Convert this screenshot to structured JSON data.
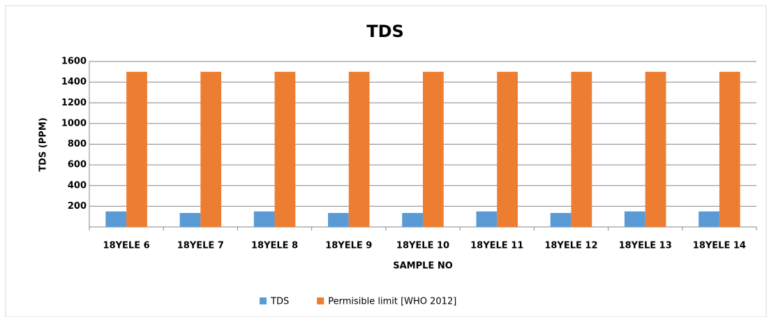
{
  "chart_data": {
    "type": "bar",
    "title": "TDS",
    "x_label": "SAMPLE NO",
    "y_label": "TDS (PPM)",
    "categories": [
      "18YELE 6",
      "18YELE 7",
      "18YELE 8",
      "18YELE 9",
      "18YELE 10",
      "18YELE 11",
      "18YELE 12",
      "18YELE 13",
      "18YELE 14"
    ],
    "series": [
      {
        "name": "TDS",
        "color": "#5b9bd5",
        "values": [
          150,
          135,
          150,
          135,
          135,
          150,
          135,
          150,
          150
        ]
      },
      {
        "name": "Permisible limit [WHO 2012]",
        "color": "#ed7d31",
        "values": [
          1500,
          1500,
          1500,
          1500,
          1500,
          1500,
          1500,
          1500,
          1500
        ]
      }
    ],
    "ylim": [
      0,
      1600
    ],
    "yticks": [
      200,
      400,
      600,
      800,
      1000,
      1200,
      1400,
      1600
    ],
    "grid": true,
    "legend": "bottom"
  }
}
